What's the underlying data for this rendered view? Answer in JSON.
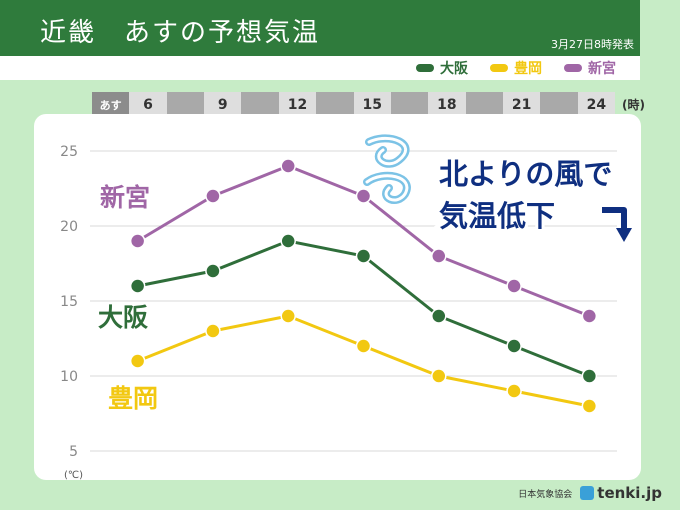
{
  "header": {
    "title": "近畿　あすの予想気温",
    "issued": "3月27日8時発表"
  },
  "legend": [
    {
      "label": "大阪",
      "color": "#2f6e3a"
    },
    {
      "label": "豊岡",
      "color": "#f2c811"
    },
    {
      "label": "新宮",
      "color": "#a066a6"
    }
  ],
  "timebar": {
    "first": "あす",
    "hours": [
      "6",
      "9",
      "12",
      "15",
      "18",
      "21",
      "24"
    ],
    "unit": "(時)"
  },
  "annotation": {
    "line1": "北よりの風で",
    "line2": "気温低下"
  },
  "footer": {
    "credit": "日本気象協会",
    "logo": "tenki.jp"
  },
  "chart_data": {
    "type": "line",
    "x": [
      "6",
      "9",
      "12",
      "15",
      "18",
      "21",
      "24"
    ],
    "ylabel": "(℃)",
    "ylim": [
      5,
      25
    ],
    "yticks": [
      5,
      10,
      15,
      20,
      25
    ],
    "grid": true,
    "series": [
      {
        "name": "新宮",
        "color": "#a066a6",
        "values": [
          19,
          22,
          24,
          22,
          18,
          16,
          14
        ]
      },
      {
        "name": "大阪",
        "color": "#2f6e3a",
        "values": [
          16,
          17,
          19,
          18,
          14,
          12,
          10
        ]
      },
      {
        "name": "豊岡",
        "color": "#f2c811",
        "values": [
          11,
          13,
          14,
          12,
          10,
          9,
          8
        ]
      }
    ]
  }
}
